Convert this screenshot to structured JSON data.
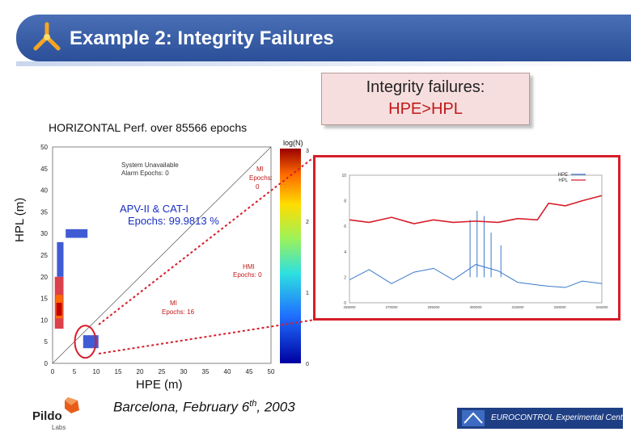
{
  "slide": {
    "title": "Example 2: Integrity Failures",
    "colors": {
      "title_bar": "#2b4f98",
      "callout_bg": "#f7dede",
      "highlight_red": "#d61e2a"
    }
  },
  "callout": {
    "line1": "Integrity failures:",
    "line2": "HPE>HPL"
  },
  "footer": {
    "date_prefix": "Barcelona, February 6",
    "date_sup": "th",
    "date_suffix": ", 2003",
    "pildo_name": "Pildo",
    "pildo_sub": "Labs",
    "eurocontrol": "EUROCONTROL Experimental Centre"
  },
  "chart_data": [
    {
      "type": "heatmap",
      "title": "HORIZONTAL Perf. over 85566 epochs",
      "xlabel": "HPE (m)",
      "ylabel": "HPL (m)",
      "xlim": [
        0,
        50
      ],
      "ylim": [
        0,
        50
      ],
      "xticks": [
        0,
        5,
        10,
        15,
        20,
        25,
        30,
        35,
        40,
        45,
        50
      ],
      "yticks": [
        0,
        5,
        10,
        15,
        20,
        25,
        30,
        35,
        40,
        45,
        50
      ],
      "colorbar": {
        "label": "log(N)",
        "ticks": [
          0,
          1,
          2,
          3
        ]
      },
      "annotations": {
        "system_unavailable": "System Unavailable",
        "alarm_epochs": "Alarm Epochs: 0",
        "mi": "MI",
        "mi_epochs_line": "Epochs:",
        "mi_epochs_value": "0",
        "apv_title": "APV-II & CAT-I",
        "apv_epochs": "Epochs: 99.9813 %",
        "hmi": "HMI",
        "hmi_epochs": "Epochs: 0",
        "mi2": "MI",
        "mi2_epochs": "Epochs: 16"
      },
      "clusters": [
        {
          "hpe": [
            0.5,
            2.5
          ],
          "hpl": [
            8,
            20
          ],
          "level": 3
        },
        {
          "hpe": [
            1.0,
            2.5
          ],
          "hpl": [
            20,
            28
          ],
          "level": 1
        },
        {
          "hpe": [
            3.0,
            8.0
          ],
          "hpl": [
            29,
            31
          ],
          "level": 1
        },
        {
          "hpe": [
            7.0,
            10.5
          ],
          "hpl": [
            3.5,
            6.5
          ],
          "level": 1
        }
      ],
      "highlight": {
        "hpe": 7.5,
        "hpl": 5,
        "note": "red ellipse"
      }
    },
    {
      "type": "line",
      "title": "",
      "series": [
        {
          "name": "HPE",
          "color": "#3a78c9"
        },
        {
          "name": "HPL",
          "color": "#d61e2a"
        }
      ],
      "xlim": [
        255000,
        345000
      ],
      "ylim": [
        0,
        10
      ],
      "xticks": [
        255000,
        270000,
        285000,
        300000,
        315000,
        330000,
        345000
      ],
      "yticks": [
        0,
        2,
        4,
        6,
        8,
        10
      ],
      "x": [
        255000,
        262000,
        270000,
        278000,
        285000,
        292000,
        300000,
        308000,
        315000,
        322000,
        326000,
        332000,
        338000,
        345000
      ],
      "hpl": [
        6.5,
        6.3,
        6.7,
        6.2,
        6.5,
        6.3,
        6.4,
        6.3,
        6.6,
        6.5,
        7.8,
        7.6,
        8.0,
        8.4
      ],
      "hpe": [
        1.8,
        2.6,
        1.5,
        2.4,
        2.7,
        1.8,
        3.0,
        2.5,
        1.6,
        1.4,
        1.3,
        1.2,
        1.7,
        1.5
      ],
      "hpe_spikes": [
        {
          "x": 298000,
          "y": 6.5
        },
        {
          "x": 300500,
          "y": 7.2
        },
        {
          "x": 303000,
          "y": 6.8
        },
        {
          "x": 305500,
          "y": 5.5
        },
        {
          "x": 309000,
          "y": 4.5
        }
      ]
    }
  ]
}
